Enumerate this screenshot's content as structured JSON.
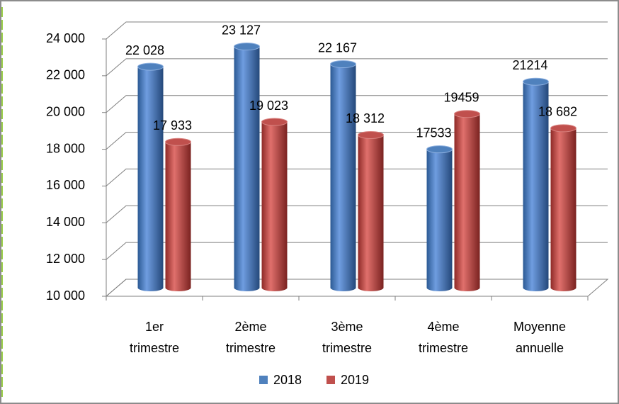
{
  "chart_data": {
    "type": "bar3d",
    "categories": [
      "1er trimestre",
      "2ème trimestre",
      "3ème trimestre",
      "4ème trimestre",
      "Moyenne annuelle"
    ],
    "series": [
      {
        "name": "2018",
        "color": "#4f81bd",
        "values": [
          22028,
          23127,
          22167,
          17533,
          21214
        ],
        "value_labels": [
          "22 028",
          "23 127",
          "22 167",
          "17533",
          "21214"
        ]
      },
      {
        "name": "2019",
        "color": "#c0504d",
        "values": [
          17933,
          19023,
          18312,
          19459,
          18682
        ],
        "value_labels": [
          "17 933",
          "19 023",
          "18 312",
          "19459",
          "18 682"
        ]
      }
    ],
    "ylim": [
      10000,
      24000
    ],
    "yticks": [
      {
        "value": 10000,
        "label": "10 000"
      },
      {
        "value": 12000,
        "label": "12 000"
      },
      {
        "value": 14000,
        "label": "14 000"
      },
      {
        "value": 16000,
        "label": "16 000"
      },
      {
        "value": 18000,
        "label": "18 000"
      },
      {
        "value": 20000,
        "label": "20 000"
      },
      {
        "value": 22000,
        "label": "22 000"
      },
      {
        "value": 24000,
        "label": "24 000"
      }
    ],
    "grid": true,
    "legend": "bottom"
  }
}
